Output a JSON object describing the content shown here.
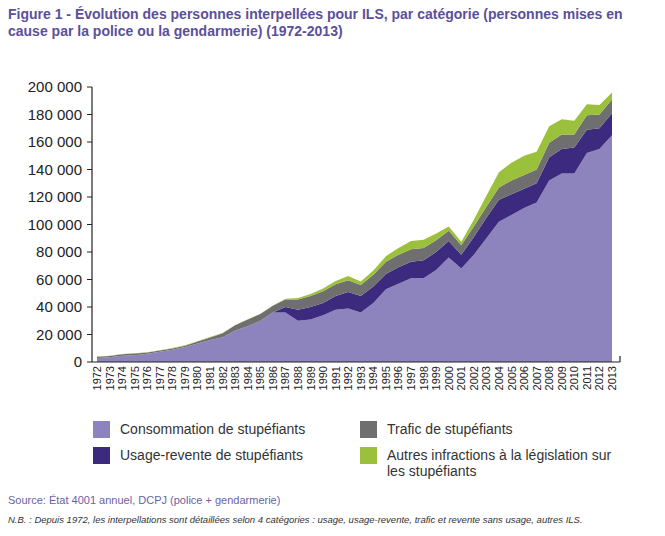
{
  "chart_data": {
    "type": "area",
    "stacked": true,
    "title": "Figure 1 - Évolution des personnes interpellées pour ILS, par catégorie (personnes mises en cause par la police ou la gendarmerie) (1972-2013)",
    "annotations": [
      "Source: État 4001 annuel, DCPJ (police + gendarmerie)",
      "N.B. : Depuis 1972, les interpellations sont détaillées selon 4 catégories : usage, usage-revente, trafic et revente sans usage, autres ILS."
    ],
    "legend": "bottom",
    "grid": false,
    "categories": [
      "1972",
      "1973",
      "1974",
      "1975",
      "1976",
      "1977",
      "1978",
      "1979",
      "1980",
      "1981",
      "1982",
      "1983",
      "1984",
      "1985",
      "1986",
      "1987",
      "1988",
      "1989",
      "1990",
      "1991",
      "1992",
      "1993",
      "1994",
      "1995",
      "1996",
      "1997",
      "1998",
      "1999",
      "2000",
      "2001",
      "2002",
      "2003",
      "2004",
      "2005",
      "2006",
      "2007",
      "2008",
      "2009",
      "2010",
      "2011",
      "2012",
      "2013"
    ],
    "ylim": [
      0,
      200000
    ],
    "yticks": [
      0,
      {
        "value": 20000,
        "label": "20 000"
      },
      {
        "value": 40000,
        "label": "40 000"
      },
      {
        "value": 60000,
        "label": "60 000"
      },
      {
        "value": 80000,
        "label": "80 000"
      },
      {
        "value": 100000,
        "label": "100 000"
      },
      {
        "value": 120000,
        "label": "120 000"
      },
      {
        "value": 140000,
        "label": "140 000"
      },
      {
        "value": 160000,
        "label": "160 000"
      },
      {
        "value": 180000,
        "label": "180 000"
      },
      {
        "value": 200000,
        "label": "200 000"
      }
    ],
    "series": [
      {
        "name": "Consommation de stupéfiants",
        "color": "#8d84bd",
        "values": [
          3000,
          3500,
          4500,
          5000,
          6000,
          7500,
          9000,
          11000,
          13500,
          16000,
          18000,
          23000,
          26000,
          30000,
          36000,
          36000,
          30000,
          31000,
          34000,
          38000,
          39000,
          36000,
          43000,
          53000,
          57000,
          61000,
          61000,
          67000,
          76000,
          68000,
          78000,
          90000,
          102000,
          107000,
          112000,
          116000,
          132000,
          137000,
          137000,
          152000,
          155000,
          165000
        ]
      },
      {
        "name": "Usage-revente de stupéfiants",
        "color": "#3b2a7e",
        "values": [
          0,
          0,
          0,
          0,
          0,
          0,
          0,
          0,
          0,
          0,
          0,
          0,
          0,
          0,
          0,
          4000,
          8000,
          9000,
          9000,
          10000,
          12000,
          12000,
          12000,
          11000,
          12000,
          12000,
          13000,
          13000,
          12000,
          10000,
          13000,
          15000,
          16000,
          15000,
          14000,
          14000,
          17000,
          18000,
          19000,
          17000,
          15000,
          16000
        ]
      },
      {
        "name": "Trafic de stupéfiants",
        "color": "#6f6f6f",
        "values": [
          800,
          800,
          1200,
          1200,
          900,
          900,
          900,
          900,
          1400,
          1900,
          2900,
          3800,
          4900,
          4900,
          4900,
          5500,
          7500,
          8000,
          8500,
          8500,
          8500,
          8000,
          8500,
          9000,
          9000,
          9000,
          9000,
          8500,
          7500,
          7000,
          7500,
          8000,
          9000,
          10000,
          10000,
          10000,
          10500,
          10500,
          9500,
          10500,
          10000,
          10000
        ]
      },
      {
        "name": "Autres infractions à la législation sur les stupéfiants",
        "color": "#9bc13c",
        "values": [
          200,
          200,
          200,
          200,
          200,
          200,
          200,
          200,
          200,
          200,
          200,
          200,
          200,
          200,
          200,
          500,
          1000,
          1500,
          2000,
          2500,
          3000,
          2500,
          3000,
          4000,
          5000,
          6000,
          6000,
          5000,
          3000,
          2500,
          5000,
          8000,
          11000,
          13000,
          14000,
          13000,
          12000,
          11000,
          10000,
          8000,
          7000,
          5000
        ]
      }
    ]
  }
}
